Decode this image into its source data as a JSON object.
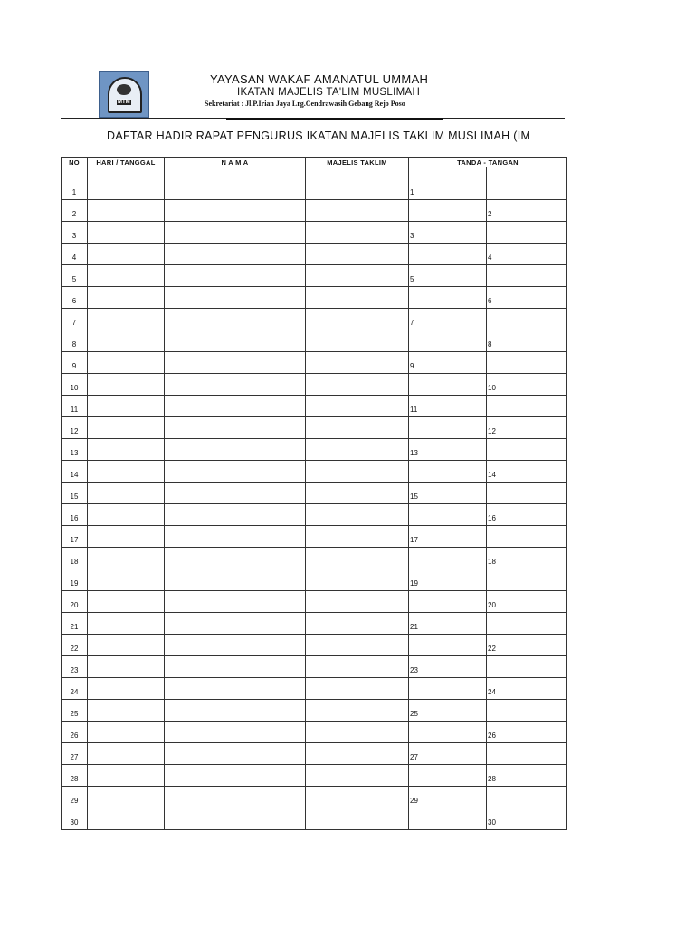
{
  "header": {
    "org": "YAYASAN WAKAF AMANATUL UMMAH",
    "sub": "IKATAN MAJELIS TA'LIM MUSLIMAH",
    "address": "Sekretariat : Jl.P.Irian Jaya Lrg.Cendrawasih Gebang Rejo Poso",
    "logo_text": "MTM"
  },
  "title": "DAFTAR HADIR RAPAT PENGURUS IKATAN MAJELIS TAKLIM MUSLIMAH (IM",
  "table": {
    "headers": [
      "NO",
      "HARI / TANGGAL",
      "N A M A",
      "MAJELIS TAKLIM",
      "TANDA - TANGAN"
    ],
    "rows": [
      "1",
      "2",
      "3",
      "4",
      "5",
      "6",
      "7",
      "8",
      "9",
      "10",
      "11",
      "12",
      "13",
      "14",
      "15",
      "16",
      "17",
      "18",
      "19",
      "20",
      "21",
      "22",
      "23",
      "24",
      "25",
      "26",
      "27",
      "28",
      "29",
      "30"
    ]
  }
}
